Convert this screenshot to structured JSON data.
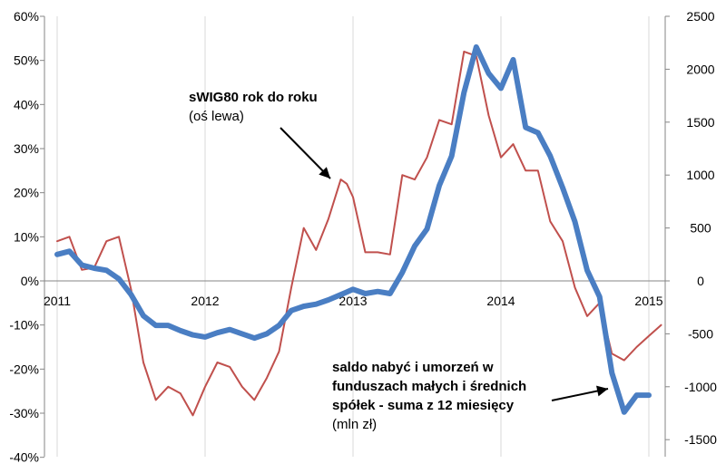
{
  "chart_data": {
    "type": "line",
    "grid": "vertical lines at year boundaries",
    "left_axis": {
      "ticks": [
        "60%",
        "50%",
        "40%",
        "30%",
        "20%",
        "10%",
        "0%",
        "-10%",
        "-20%",
        "-30%",
        "-40%"
      ],
      "range": [
        -40,
        60
      ]
    },
    "right_axis": {
      "ticks": [
        "2500",
        "2000",
        "1500",
        "1000",
        "500",
        "0",
        "-500",
        "-1000",
        "-1500"
      ],
      "range": [
        -1500,
        2500
      ]
    },
    "x_axis": {
      "ticks": [
        "2011",
        "2012",
        "2013",
        "2014",
        "2015"
      ],
      "range": [
        2011,
        2015.25
      ]
    },
    "series": [
      {
        "color": "#C0504D",
        "axis": "left",
        "points": [
          [
            2011.0,
            9
          ],
          [
            2011.083,
            10
          ],
          [
            2011.167,
            2.5
          ],
          [
            2011.25,
            3
          ],
          [
            2011.333,
            9
          ],
          [
            2011.417,
            10
          ],
          [
            2011.5,
            -2
          ],
          [
            2011.583,
            -18.5
          ],
          [
            2011.667,
            -27
          ],
          [
            2011.75,
            -24
          ],
          [
            2011.833,
            -25.5
          ],
          [
            2011.917,
            -30.5
          ],
          [
            2012.0,
            -24
          ],
          [
            2012.083,
            -18.5
          ],
          [
            2012.167,
            -19.5
          ],
          [
            2012.25,
            -24
          ],
          [
            2012.333,
            -27
          ],
          [
            2012.417,
            -22
          ],
          [
            2012.5,
            -16
          ],
          [
            2012.583,
            -1.5
          ],
          [
            2012.667,
            12
          ],
          [
            2012.75,
            7
          ],
          [
            2012.833,
            14
          ],
          [
            2012.917,
            23
          ],
          [
            2012.958,
            22
          ],
          [
            2013.0,
            19
          ],
          [
            2013.083,
            6.5
          ],
          [
            2013.167,
            6.5
          ],
          [
            2013.25,
            6
          ],
          [
            2013.333,
            24
          ],
          [
            2013.417,
            23
          ],
          [
            2013.5,
            28
          ],
          [
            2013.583,
            36.5
          ],
          [
            2013.667,
            35.5
          ],
          [
            2013.75,
            52
          ],
          [
            2013.833,
            51
          ],
          [
            2013.917,
            37.5
          ],
          [
            2014.0,
            28
          ],
          [
            2014.083,
            31
          ],
          [
            2014.167,
            25
          ],
          [
            2014.25,
            25
          ],
          [
            2014.333,
            13.5
          ],
          [
            2014.417,
            9
          ],
          [
            2014.5,
            -1.5
          ],
          [
            2014.583,
            -8
          ],
          [
            2014.667,
            -5
          ],
          [
            2014.75,
            -16.5
          ],
          [
            2014.833,
            -18
          ],
          [
            2014.917,
            -15
          ],
          [
            2015.0,
            -12.5
          ],
          [
            2015.083,
            -10
          ]
        ]
      },
      {
        "color": "#4A7EC3",
        "axis": "right",
        "points": [
          [
            2011.0,
            250
          ],
          [
            2011.083,
            280
          ],
          [
            2011.167,
            150
          ],
          [
            2011.25,
            120
          ],
          [
            2011.333,
            100
          ],
          [
            2011.417,
            20
          ],
          [
            2011.5,
            -130
          ],
          [
            2011.583,
            -330
          ],
          [
            2011.667,
            -420
          ],
          [
            2011.75,
            -420
          ],
          [
            2011.833,
            -470
          ],
          [
            2011.917,
            -510
          ],
          [
            2012.0,
            -530
          ],
          [
            2012.083,
            -490
          ],
          [
            2012.167,
            -460
          ],
          [
            2012.25,
            -500
          ],
          [
            2012.333,
            -540
          ],
          [
            2012.417,
            -500
          ],
          [
            2012.5,
            -420
          ],
          [
            2012.583,
            -280
          ],
          [
            2012.667,
            -240
          ],
          [
            2012.75,
            -220
          ],
          [
            2012.833,
            -180
          ],
          [
            2012.917,
            -130
          ],
          [
            2013.0,
            -80
          ],
          [
            2013.083,
            -120
          ],
          [
            2013.167,
            -100
          ],
          [
            2013.25,
            -120
          ],
          [
            2013.333,
            80
          ],
          [
            2013.417,
            330
          ],
          [
            2013.5,
            490
          ],
          [
            2013.583,
            900
          ],
          [
            2013.667,
            1180
          ],
          [
            2013.75,
            1780
          ],
          [
            2013.833,
            2210
          ],
          [
            2013.917,
            1960
          ],
          [
            2014.0,
            1820
          ],
          [
            2014.083,
            2090
          ],
          [
            2014.167,
            1450
          ],
          [
            2014.25,
            1400
          ],
          [
            2014.333,
            1180
          ],
          [
            2014.417,
            880
          ],
          [
            2014.5,
            560
          ],
          [
            2014.583,
            100
          ],
          [
            2014.667,
            -150
          ],
          [
            2014.75,
            -870
          ],
          [
            2014.833,
            -1240
          ],
          [
            2014.917,
            -1080
          ],
          [
            2015.0,
            -1080
          ]
        ]
      }
    ],
    "annotations": [
      {
        "lines": [
          {
            "text": "sWIG80 rok do roku",
            "bold": true
          },
          {
            "text": "(oś lewa)",
            "bold": false
          }
        ]
      },
      {
        "lines": [
          {
            "text": "saldo nabyć i umorzeń w",
            "bold": true
          },
          {
            "text": "funduszach małych i średnich",
            "bold": true
          },
          {
            "text": "spółek - suma z 12 miesięcy",
            "bold": true
          },
          {
            "text": "(mln zł)",
            "bold": false
          }
        ]
      }
    ]
  }
}
